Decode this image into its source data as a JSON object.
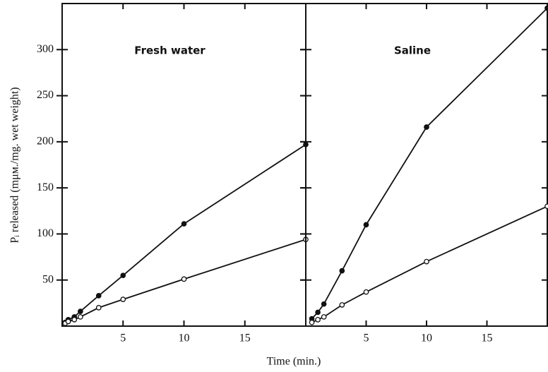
{
  "xlabel": "Time (min.)",
  "ylabel": "Pᵢ released (mμм./mg. wet weight)",
  "chart_data": [
    {
      "type": "line",
      "title": "Fresh water",
      "x": [
        0.25,
        0.5,
        1,
        1.5,
        3,
        5,
        10,
        20
      ],
      "series": [
        {
          "marker": "filled",
          "color": "#111111",
          "values": [
            4,
            7,
            10,
            16,
            33,
            55,
            111,
            197
          ]
        },
        {
          "marker": "open",
          "color": "#111111",
          "values": [
            3,
            5,
            7,
            10,
            20,
            29,
            51,
            94
          ]
        }
      ],
      "xlim": [
        0,
        20
      ],
      "xticks": [
        5,
        10,
        15
      ],
      "ylim": [
        0,
        350
      ],
      "yticks": [
        50,
        100,
        150,
        200,
        250,
        300
      ],
      "show_ytick_labels": true
    },
    {
      "type": "line",
      "title": "Saline",
      "x": [
        0.5,
        1,
        1.5,
        3,
        5,
        10,
        20
      ],
      "series": [
        {
          "marker": "filled",
          "color": "#111111",
          "values": [
            8,
            15,
            24,
            60,
            110,
            216,
            345
          ]
        },
        {
          "marker": "open",
          "color": "#111111",
          "values": [
            4,
            7,
            10,
            23,
            37,
            70,
            130
          ]
        }
      ],
      "xlim": [
        0,
        20
      ],
      "xticks": [
        5,
        10,
        15
      ],
      "ylim": [
        0,
        350
      ],
      "yticks": [
        50,
        100,
        150,
        200,
        250,
        300
      ],
      "show_ytick_labels": false
    }
  ]
}
